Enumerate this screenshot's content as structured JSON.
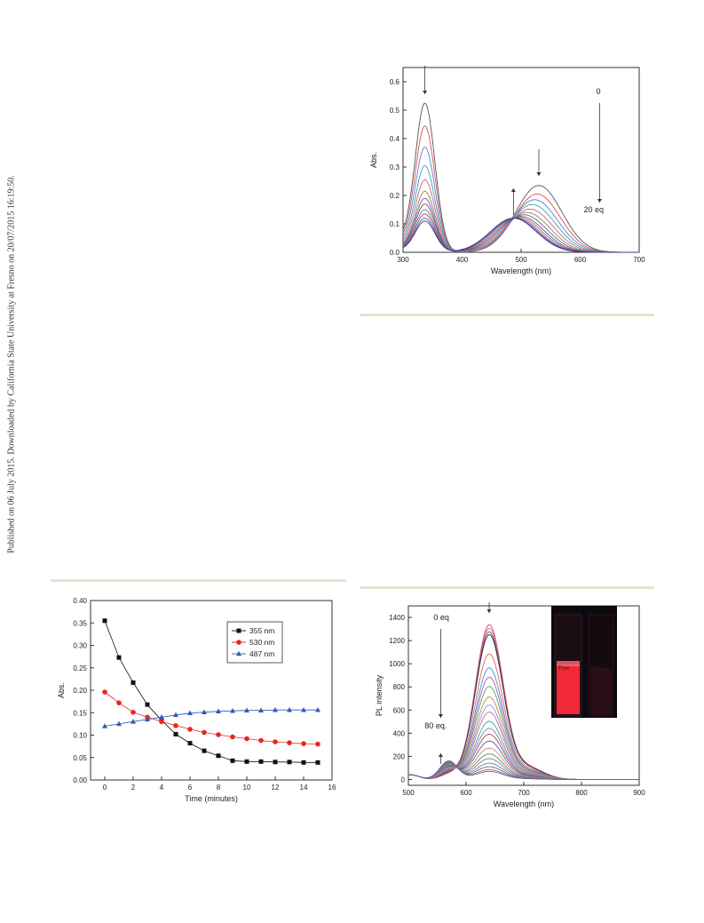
{
  "sidebar": {
    "text": "Published on 06 July 2015. Downloaded by California State University at Fresno on 20/07/2015 16:19:50."
  },
  "chart_data": [
    {
      "type": "line",
      "id": "uv_vis_titration",
      "xlabel": "Wavelength (nm)",
      "ylabel": "Abs.",
      "xlim": [
        300,
        700
      ],
      "ylim": [
        0,
        0.65
      ],
      "xticks": [
        300,
        400,
        500,
        600,
        700
      ],
      "yticks": [
        0.0,
        0.1,
        0.2,
        0.3,
        0.4,
        0.5,
        0.6
      ],
      "annotations": [
        "0",
        "20 eq"
      ],
      "grid": false,
      "series_count": 12,
      "peaks": {
        "uv_band_nm": 337,
        "vis_band_nm": 530,
        "isosbestic_nm": 487
      },
      "series": [
        {
          "uv_peak": 0.525,
          "vis_peak": 0.235,
          "vis_center": 530,
          "color": "#555555"
        },
        {
          "uv_peak": 0.445,
          "vis_peak": 0.205,
          "vis_center": 527,
          "color": "#e04a4a"
        },
        {
          "uv_peak": 0.37,
          "vis_peak": 0.185,
          "vis_center": 523,
          "color": "#5a7fd6"
        },
        {
          "uv_peak": 0.305,
          "vis_peak": 0.168,
          "vis_center": 519,
          "color": "#39a6a0"
        },
        {
          "uv_peak": 0.255,
          "vis_peak": 0.152,
          "vis_center": 515,
          "color": "#d55aa0"
        },
        {
          "uv_peak": 0.215,
          "vis_peak": 0.14,
          "vis_center": 510,
          "color": "#8e8e3a"
        },
        {
          "uv_peak": 0.19,
          "vis_peak": 0.132,
          "vis_center": 505,
          "color": "#5c5cc8"
        },
        {
          "uv_peak": 0.17,
          "vis_peak": 0.126,
          "vis_center": 500,
          "color": "#a04040"
        },
        {
          "uv_peak": 0.15,
          "vis_peak": 0.123,
          "vis_center": 496,
          "color": "#3f8ab8"
        },
        {
          "uv_peak": 0.135,
          "vis_peak": 0.121,
          "vis_center": 492,
          "color": "#c83030"
        },
        {
          "uv_peak": 0.12,
          "vis_peak": 0.12,
          "vis_center": 489,
          "color": "#4060c0"
        },
        {
          "uv_peak": 0.11,
          "vis_peak": 0.12,
          "vis_center": 487,
          "color": "#333399"
        }
      ]
    },
    {
      "type": "scatter",
      "id": "kinetics",
      "xlabel": "Time (minutes)",
      "ylabel": "Abs.",
      "xlim": [
        -1,
        16
      ],
      "ylim": [
        0.0,
        0.4
      ],
      "xticks": [
        0,
        2,
        4,
        6,
        8,
        10,
        12,
        14,
        16
      ],
      "yticks": [
        0.0,
        0.05,
        0.1,
        0.15,
        0.2,
        0.25,
        0.3,
        0.35,
        0.4
      ],
      "grid": false,
      "legend_position": "top-right",
      "x": [
        0,
        1,
        2,
        3,
        4,
        5,
        6,
        7,
        8,
        9,
        10,
        11,
        12,
        13,
        14,
        15
      ],
      "series": [
        {
          "name": "355 nm",
          "marker": "square",
          "color": "#111111",
          "values": [
            0.355,
            0.273,
            0.217,
            0.168,
            0.133,
            0.102,
            0.082,
            0.065,
            0.054,
            0.043,
            0.041,
            0.041,
            0.04,
            0.04,
            0.039,
            0.039
          ]
        },
        {
          "name": "530 nm",
          "marker": "circle",
          "color": "#e8261f",
          "values": [
            0.196,
            0.172,
            0.151,
            0.14,
            0.13,
            0.121,
            0.113,
            0.106,
            0.101,
            0.096,
            0.092,
            0.088,
            0.085,
            0.083,
            0.081,
            0.08
          ]
        },
        {
          "name": "487 nm",
          "marker": "triangle",
          "color": "#2f5bb8",
          "values": [
            0.12,
            0.125,
            0.13,
            0.135,
            0.14,
            0.145,
            0.149,
            0.151,
            0.153,
            0.154,
            0.155,
            0.155,
            0.156,
            0.156,
            0.156,
            0.156
          ]
        }
      ]
    },
    {
      "type": "line",
      "id": "pl_titration",
      "xlabel": "Wavelength (nm)",
      "ylabel": "PL intensity",
      "xlim": [
        500,
        900
      ],
      "ylim": [
        -50,
        1500
      ],
      "xticks": [
        500,
        600,
        700,
        800,
        900
      ],
      "yticks": [
        0,
        200,
        400,
        600,
        800,
        1000,
        1200,
        1400
      ],
      "annotations": [
        "0 eq",
        "80 eq."
      ],
      "inset_labels": [
        "Free",
        "20eq"
      ],
      "grid": false,
      "emission_peak_nm": 640,
      "series_count": 22,
      "peak_values": [
        1330,
        1300,
        1270,
        1245,
        1080,
        960,
        880,
        800,
        710,
        640,
        580,
        500,
        440,
        390,
        330,
        270,
        220,
        180,
        140,
        110,
        85,
        70
      ],
      "colors": [
        "#e0407a",
        "#d66a6a",
        "#555599",
        "#333333",
        "#e06060",
        "#4b8fc8",
        "#a45ac6",
        "#4ca06a",
        "#c08a3a",
        "#9090d0",
        "#d060a0",
        "#3aa0a0",
        "#8080c0",
        "#b04848",
        "#5a5aa0",
        "#d08080",
        "#4a9a4a",
        "#a06aa0",
        "#5080c0",
        "#707070",
        "#b06060",
        "#6060b0"
      ]
    }
  ]
}
